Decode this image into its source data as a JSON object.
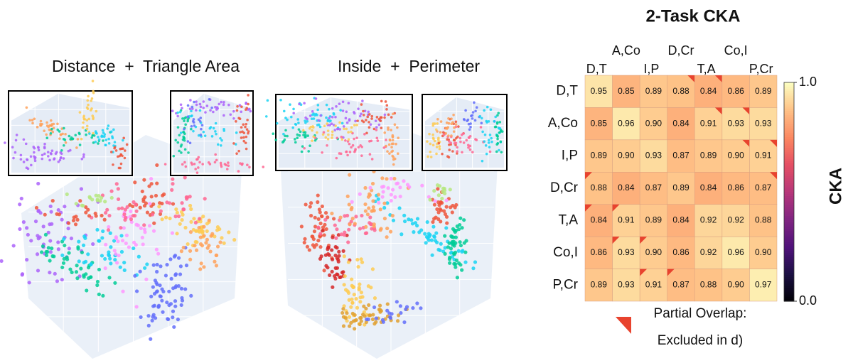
{
  "panels": [
    {
      "title": "Distance  +  Triangle Area"
    },
    {
      "title": "Inside  +  Perimeter"
    }
  ],
  "chart_data": {
    "type": "heatmap",
    "title": "2-Task CKA",
    "categories": [
      "D,T",
      "A,Co",
      "I,P",
      "D,Cr",
      "T,A",
      "Co,I",
      "P,Cr"
    ],
    "values": [
      [
        0.95,
        0.85,
        0.89,
        0.88,
        0.84,
        0.86,
        0.89
      ],
      [
        0.85,
        0.96,
        0.9,
        0.84,
        0.91,
        0.93,
        0.93
      ],
      [
        0.89,
        0.9,
        0.93,
        0.87,
        0.89,
        0.9,
        0.91
      ],
      [
        0.88,
        0.84,
        0.87,
        0.89,
        0.84,
        0.86,
        0.87
      ],
      [
        0.84,
        0.91,
        0.89,
        0.84,
        0.92,
        0.92,
        0.88
      ],
      [
        0.86,
        0.93,
        0.9,
        0.86,
        0.92,
        0.96,
        0.9
      ],
      [
        0.89,
        0.93,
        0.91,
        0.87,
        0.88,
        0.9,
        0.97
      ]
    ],
    "value_labels": [
      [
        "0.95",
        "0.85",
        "0.89",
        "0.88",
        "0.84",
        "0.86",
        "0.89"
      ],
      [
        "0.85",
        "0.96",
        "0.90",
        "0.84",
        "0.91",
        "0.93",
        "0.93"
      ],
      [
        "0.89",
        "0.90",
        "0.93",
        "0.87",
        "0.89",
        "0.90",
        "0.91"
      ],
      [
        "0.88",
        "0.84",
        "0.87",
        "0.89",
        "0.84",
        "0.86",
        "0.87"
      ],
      [
        "0.84",
        "0.91",
        "0.89",
        "0.84",
        "0.92",
        "0.92",
        "0.88"
      ],
      [
        "0.86",
        "0.93",
        "0.90",
        "0.86",
        "0.92",
        "0.96",
        "0.90"
      ],
      [
        "0.89",
        "0.93",
        "0.91",
        "0.87",
        "0.88",
        "0.90",
        "0.97"
      ]
    ],
    "colorbar_label": "CKA",
    "clim": [
      0,
      1
    ],
    "cticks": [
      {
        "value": 0,
        "label": "0.0"
      },
      {
        "value": 1,
        "label": "1.0"
      }
    ],
    "colormap": "magma",
    "overlap_color": "#e8432e",
    "legend_text": [
      "Partial Overlap:",
      "Excluded in d)"
    ]
  }
}
